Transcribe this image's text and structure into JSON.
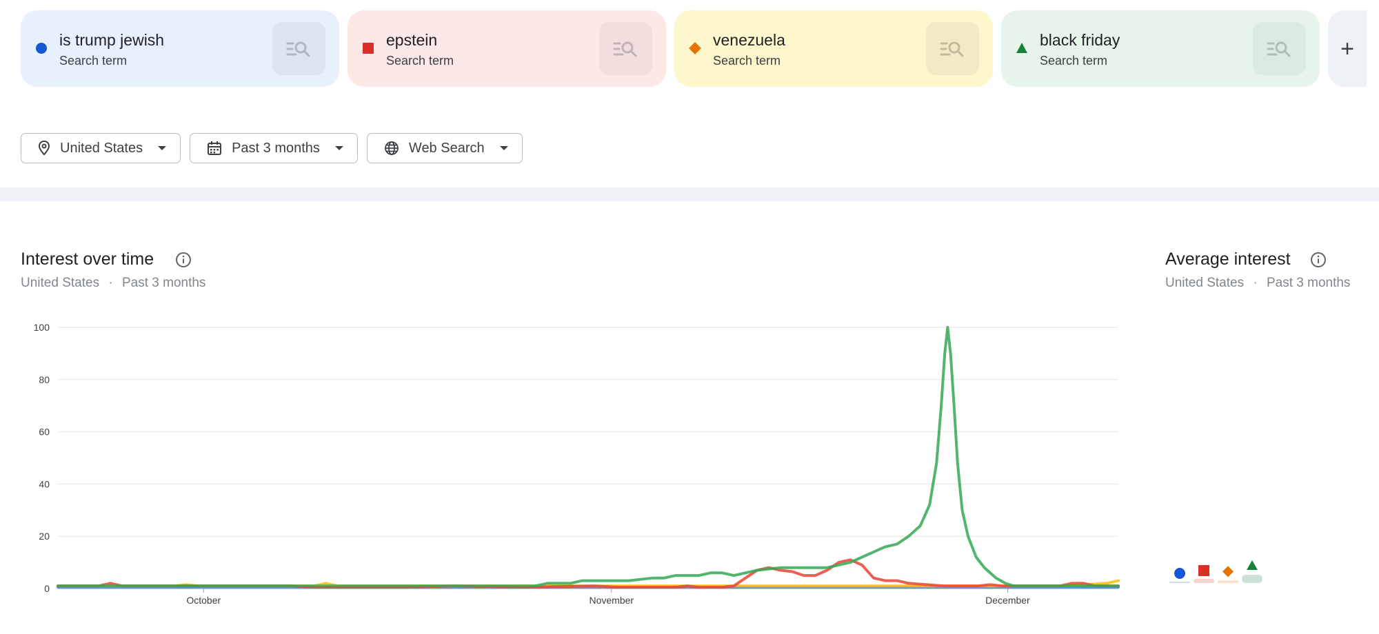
{
  "terms": [
    {
      "name": "is trump jewish",
      "sub": "Search term",
      "color": "#1558d6",
      "bg": "#e8f0fe",
      "btn_bg": "#dde4f0",
      "marker": "circle"
    },
    {
      "name": "epstein",
      "sub": "Search term",
      "color": "#d93025",
      "bg": "#fce8e6",
      "btn_bg": "#f1dedd",
      "marker": "square"
    },
    {
      "name": "venezuela",
      "sub": "Search term",
      "color": "#e37400",
      "bg": "#fef7cd",
      "btn_bg": "#f1eac5",
      "marker": "diamond"
    },
    {
      "name": "black friday",
      "sub": "Search term",
      "color": "#188038",
      "bg": "#e6f4ea",
      "btn_bg": "#dcebe0",
      "marker": "triangle"
    }
  ],
  "add_label": "+",
  "filters": [
    {
      "icon": "location-pin-icon",
      "label": "United States"
    },
    {
      "icon": "calendar-icon",
      "label": "Past 3 months"
    },
    {
      "icon": "globe-icon",
      "label": "Web Search"
    }
  ],
  "interest_over_time": {
    "title": "Interest over time",
    "region": "United States",
    "sep": "·",
    "period": "Past 3 months"
  },
  "average_interest": {
    "title": "Average interest",
    "region": "United States",
    "sep": "·",
    "period": "Past 3 months"
  },
  "chart_data": {
    "type": "line",
    "title": "Interest over time",
    "xlabel": "",
    "ylabel": "",
    "ylim": [
      0,
      100
    ],
    "yticks": [
      0,
      20,
      40,
      60,
      80,
      100
    ],
    "xlim": [
      0,
      91
    ],
    "xticks": [
      {
        "x": 12.5,
        "label": "October"
      },
      {
        "x": 47.5,
        "label": "November"
      },
      {
        "x": 81.5,
        "label": "December"
      }
    ],
    "grid": true,
    "legend": "top",
    "series": [
      {
        "name": "is trump jewish",
        "color": "#4285f4",
        "points": [
          [
            0,
            0.5
          ],
          [
            91,
            0.5
          ]
        ]
      },
      {
        "name": "venezuela",
        "color": "#fbbc04",
        "points": [
          [
            0,
            1
          ],
          [
            10,
            1
          ],
          [
            11,
            1.5
          ],
          [
            12,
            1
          ],
          [
            22,
            1
          ],
          [
            23,
            2
          ],
          [
            24,
            1
          ],
          [
            35,
            1
          ],
          [
            48,
            1
          ],
          [
            55,
            1
          ],
          [
            60,
            1
          ],
          [
            66,
            1
          ],
          [
            72,
            1
          ],
          [
            76,
            1
          ],
          [
            80,
            1
          ],
          [
            84,
            1
          ],
          [
            86,
            1
          ],
          [
            90,
            2
          ],
          [
            91,
            3
          ]
        ]
      },
      {
        "name": "epstein",
        "color": "#ea4335",
        "points": [
          [
            0,
            1
          ],
          [
            3.5,
            1
          ],
          [
            4.5,
            2
          ],
          [
            5.5,
            1
          ],
          [
            10,
            1
          ],
          [
            14,
            1
          ],
          [
            18,
            1
          ],
          [
            20,
            1
          ],
          [
            22,
            0.5
          ],
          [
            26,
            0.5
          ],
          [
            30,
            0.5
          ],
          [
            34,
            1
          ],
          [
            40,
            0.5
          ],
          [
            46,
            1
          ],
          [
            48,
            0.5
          ],
          [
            53,
            0.5
          ],
          [
            54,
            1
          ],
          [
            55,
            0.5
          ],
          [
            57,
            0.5
          ],
          [
            58,
            1
          ],
          [
            59,
            4
          ],
          [
            60,
            7
          ],
          [
            61,
            8
          ],
          [
            62,
            7
          ],
          [
            63,
            6.5
          ],
          [
            64,
            5
          ],
          [
            65,
            5
          ],
          [
            66,
            7
          ],
          [
            67,
            10
          ],
          [
            68,
            11
          ],
          [
            69,
            9
          ],
          [
            70,
            4
          ],
          [
            71,
            3
          ],
          [
            72,
            3
          ],
          [
            73,
            2
          ],
          [
            76,
            1
          ],
          [
            79,
            1
          ],
          [
            80,
            1.5
          ],
          [
            81,
            1
          ],
          [
            82,
            1
          ],
          [
            85,
            1
          ],
          [
            86,
            1
          ],
          [
            87,
            2
          ],
          [
            88,
            2
          ],
          [
            89,
            1
          ],
          [
            91,
            1
          ]
        ]
      },
      {
        "name": "black friday",
        "color": "#34a853",
        "points": [
          [
            0,
            1
          ],
          [
            20,
            1
          ],
          [
            30,
            1
          ],
          [
            38,
            1
          ],
          [
            41,
            1
          ],
          [
            42,
            2
          ],
          [
            44,
            2
          ],
          [
            45,
            3
          ],
          [
            49,
            3
          ],
          [
            51,
            4
          ],
          [
            52,
            4
          ],
          [
            53,
            5
          ],
          [
            55,
            5
          ],
          [
            56,
            6
          ],
          [
            57,
            6
          ],
          [
            58,
            5
          ],
          [
            59,
            6
          ],
          [
            60,
            7
          ],
          [
            61,
            7.5
          ],
          [
            62,
            8
          ],
          [
            63,
            8
          ],
          [
            64,
            8
          ],
          [
            65,
            8
          ],
          [
            66,
            8
          ],
          [
            67,
            9
          ],
          [
            68,
            10
          ],
          [
            69,
            12
          ],
          [
            70,
            14
          ],
          [
            71,
            16
          ],
          [
            72,
            17
          ],
          [
            73,
            20
          ],
          [
            74,
            24
          ],
          [
            74.8,
            32
          ],
          [
            75.4,
            48
          ],
          [
            75.8,
            70
          ],
          [
            76.1,
            90
          ],
          [
            76.35,
            100
          ],
          [
            76.6,
            90
          ],
          [
            76.9,
            70
          ],
          [
            77.2,
            48
          ],
          [
            77.6,
            30
          ],
          [
            78.1,
            20
          ],
          [
            78.8,
            12
          ],
          [
            79.5,
            8
          ],
          [
            80.5,
            4
          ],
          [
            81.3,
            2
          ],
          [
            82,
            1
          ],
          [
            91,
            1
          ]
        ]
      }
    ]
  },
  "average_data": {
    "type": "bar",
    "title": "Average interest",
    "categories": [
      "is trump jewish",
      "epstein",
      "venezuela",
      "black friday"
    ],
    "values": [
      0.5,
      2.5,
      1.5,
      5
    ]
  }
}
